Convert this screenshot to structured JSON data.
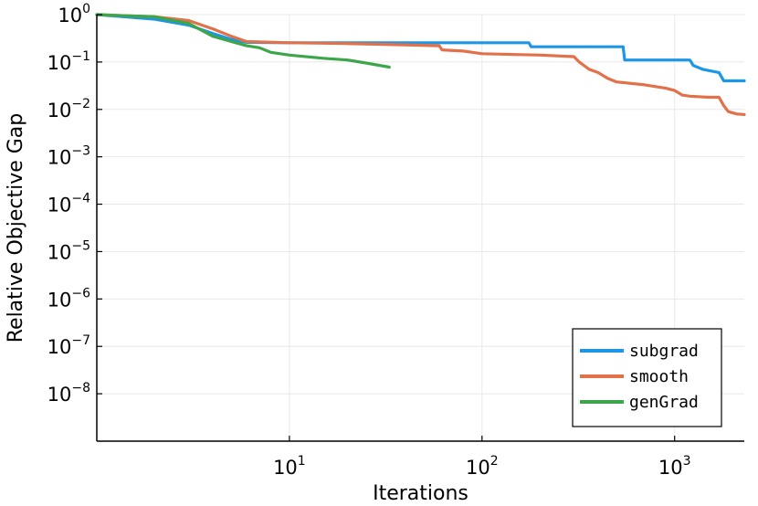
{
  "chart_data": {
    "type": "line",
    "xlabel": "Iterations",
    "ylabel": "Relative Objective Gap",
    "x_scale": "log",
    "y_scale": "log",
    "xlim": [
      1,
      2300
    ],
    "ylim": [
      1e-09,
      1
    ],
    "x_ticks": [
      {
        "value": 10,
        "base": "10",
        "exp": "1"
      },
      {
        "value": 100,
        "base": "10",
        "exp": "2"
      },
      {
        "value": 1000,
        "base": "10",
        "exp": "3"
      }
    ],
    "y_ticks": [
      {
        "value": 1,
        "base": "10",
        "exp": "0"
      },
      {
        "value": 0.1,
        "base": "10",
        "exp": "−1"
      },
      {
        "value": 0.01,
        "base": "10",
        "exp": "−2"
      },
      {
        "value": 0.001,
        "base": "10",
        "exp": "−3"
      },
      {
        "value": 0.0001,
        "base": "10",
        "exp": "−4"
      },
      {
        "value": 1e-05,
        "base": "10",
        "exp": "−5"
      },
      {
        "value": 1e-06,
        "base": "10",
        "exp": "−6"
      },
      {
        "value": 1e-07,
        "base": "10",
        "exp": "−7"
      },
      {
        "value": 1e-08,
        "base": "10",
        "exp": "−8"
      }
    ],
    "grid": true,
    "legend_position": "bottom-right",
    "series": [
      {
        "name": "subgrad",
        "color": "#1e96e6",
        "points": [
          [
            1,
            1.0
          ],
          [
            2,
            0.8
          ],
          [
            3,
            0.6
          ],
          [
            4,
            0.4
          ],
          [
            5,
            0.3
          ],
          [
            6,
            0.26
          ],
          [
            10,
            0.255
          ],
          [
            20,
            0.255
          ],
          [
            50,
            0.255
          ],
          [
            100,
            0.255
          ],
          [
            175,
            0.255
          ],
          [
            180,
            0.21
          ],
          [
            300,
            0.21
          ],
          [
            540,
            0.21
          ],
          [
            550,
            0.11
          ],
          [
            800,
            0.11
          ],
          [
            1200,
            0.11
          ],
          [
            1250,
            0.085
          ],
          [
            1400,
            0.07
          ],
          [
            1700,
            0.06
          ],
          [
            1800,
            0.04
          ],
          [
            2300,
            0.04
          ]
        ]
      },
      {
        "name": "smooth",
        "color": "#e2714a",
        "points": [
          [
            1,
            1.0
          ],
          [
            2,
            0.9
          ],
          [
            3,
            0.75
          ],
          [
            4,
            0.5
          ],
          [
            5,
            0.35
          ],
          [
            6,
            0.27
          ],
          [
            10,
            0.255
          ],
          [
            20,
            0.245
          ],
          [
            40,
            0.23
          ],
          [
            60,
            0.22
          ],
          [
            62,
            0.18
          ],
          [
            80,
            0.17
          ],
          [
            100,
            0.15
          ],
          [
            200,
            0.14
          ],
          [
            300,
            0.13
          ],
          [
            320,
            0.1
          ],
          [
            360,
            0.07
          ],
          [
            400,
            0.06
          ],
          [
            450,
            0.045
          ],
          [
            500,
            0.038
          ],
          [
            700,
            0.033
          ],
          [
            900,
            0.028
          ],
          [
            1000,
            0.025
          ],
          [
            1100,
            0.02
          ],
          [
            1200,
            0.019
          ],
          [
            1500,
            0.018
          ],
          [
            1700,
            0.018
          ],
          [
            1800,
            0.012
          ],
          [
            1900,
            0.009
          ],
          [
            2100,
            0.008
          ],
          [
            2300,
            0.0078
          ]
        ]
      },
      {
        "name": "genGrad",
        "color": "#3ca64a",
        "points": [
          [
            1,
            1.0
          ],
          [
            2,
            0.9
          ],
          [
            3,
            0.65
          ],
          [
            4,
            0.35
          ],
          [
            5,
            0.27
          ],
          [
            6,
            0.22
          ],
          [
            7,
            0.2
          ],
          [
            8,
            0.16
          ],
          [
            10,
            0.14
          ],
          [
            15,
            0.12
          ],
          [
            20,
            0.11
          ],
          [
            25,
            0.095
          ],
          [
            33,
            0.078
          ]
        ]
      }
    ]
  }
}
